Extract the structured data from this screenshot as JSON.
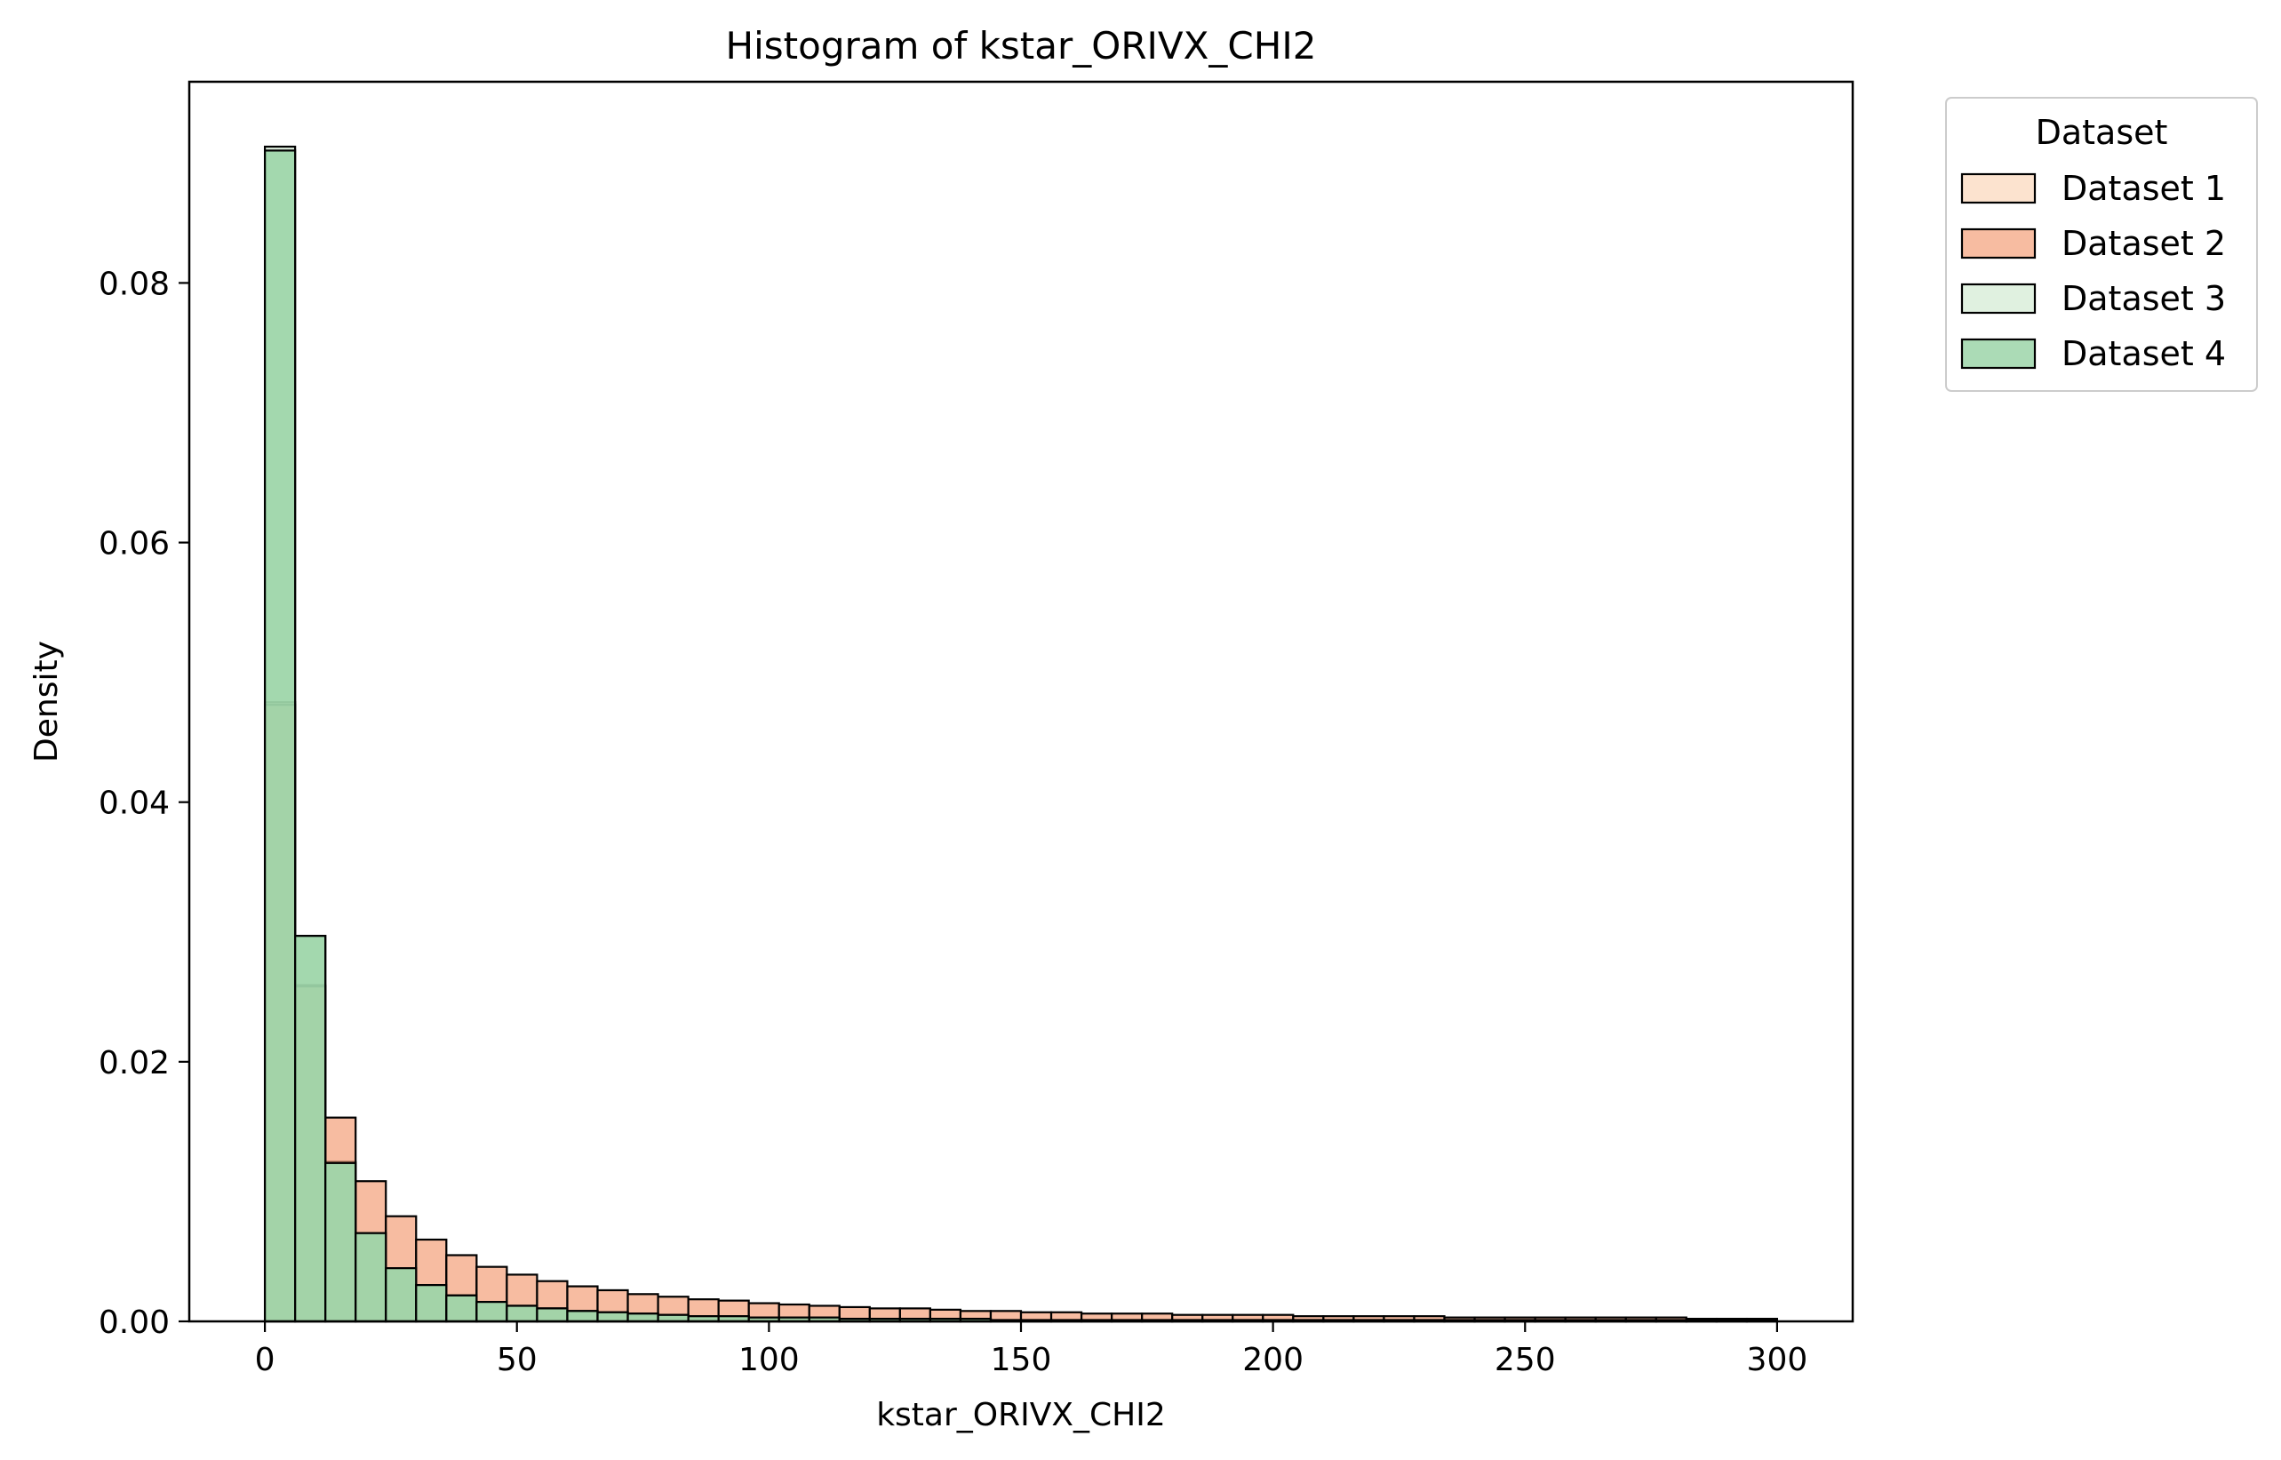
{
  "chart_data": {
    "type": "bar",
    "title": "Histogram of kstar_ORIVX_CHI2",
    "xlabel": "kstar_ORIVX_CHI2",
    "ylabel": "Density",
    "xlim": [
      -15,
      315
    ],
    "ylim": [
      0,
      0.0955
    ],
    "xticks": [
      0,
      50,
      100,
      150,
      200,
      250,
      300
    ],
    "xtick_labels": [
      "0",
      "50",
      "100",
      "150",
      "200",
      "250",
      "300"
    ],
    "yticks": [
      0,
      0.02,
      0.04,
      0.06,
      0.08
    ],
    "ytick_labels": [
      "0.00",
      "0.02",
      "0.04",
      "0.06",
      "0.08"
    ],
    "bin_width": 6,
    "bin_start": 0,
    "grid": false,
    "legend_title": "Dataset",
    "legend_position": "outside-top-right",
    "series": [
      {
        "name": "Dataset 1",
        "color": "#fbd9bf",
        "values": [
          0.0477,
          0.0259,
          0.0123,
          0.0068,
          0.0041,
          0.0028,
          0.002,
          0.0015,
          0.0012,
          0.001,
          0.0008,
          0.0007,
          0.0006,
          0.0005,
          0.0004,
          0.0004,
          0.0003,
          0.0003,
          0.0003,
          0.0002,
          0.0002,
          0.0002,
          0.0002,
          0.0002,
          0.0001,
          0.0001,
          0.0001,
          0.0001,
          0.0001,
          0.0001,
          0.0001,
          0.0001,
          0.0001,
          0.0001,
          0.0001,
          0.0001,
          0.0001,
          0.0001,
          0.0001,
          0.0001,
          0.0001,
          0.0001,
          0.0001,
          0.0001,
          0.0001,
          0.0001,
          0.0001,
          0.0001,
          0.0001,
          0.0001
        ]
      },
      {
        "name": "Dataset 2",
        "color": "#f4a582",
        "values": [
          0.0475,
          0.0258,
          0.0157,
          0.0108,
          0.0081,
          0.0063,
          0.0051,
          0.0042,
          0.0036,
          0.0031,
          0.0027,
          0.0024,
          0.0021,
          0.0019,
          0.0017,
          0.0016,
          0.0014,
          0.0013,
          0.0012,
          0.0011,
          0.001,
          0.001,
          0.0009,
          0.0008,
          0.0008,
          0.0007,
          0.0007,
          0.0006,
          0.0006,
          0.0006,
          0.0005,
          0.0005,
          0.0005,
          0.0005,
          0.0004,
          0.0004,
          0.0004,
          0.0004,
          0.0004,
          0.0003,
          0.0003,
          0.0003,
          0.0003,
          0.0003,
          0.0003,
          0.0003,
          0.0003,
          0.0002,
          0.0002,
          0.0002
        ]
      },
      {
        "name": "Dataset 3",
        "color": "#d6ecd5",
        "values": [
          0.0905,
          0.0297,
          0.0122,
          0.0068,
          0.0041,
          0.0028,
          0.002,
          0.0015,
          0.0012,
          0.001,
          0.0008,
          0.0007,
          0.0006,
          0.0005,
          0.0004,
          0.0004,
          0.0003,
          0.0003,
          0.0003,
          0.0002,
          0.0002,
          0.0002,
          0.0002,
          0.0002,
          0.0001,
          0.0001,
          0.0001,
          0.0001,
          0.0001,
          0.0001,
          0.0001,
          0.0001,
          0.0001,
          0.0001,
          0.0001,
          0.0001,
          0.0001,
          0.0001,
          0.0001,
          0.0001,
          0.0001,
          0.0001,
          0.0001,
          0.0001,
          0.0001,
          0.0001,
          0.0001,
          0.0001,
          0.0001,
          0.0001
        ]
      },
      {
        "name": "Dataset 4",
        "color": "#8fcf9e",
        "values": [
          0.0902,
          0.0297,
          0.0122,
          0.0068,
          0.0041,
          0.0028,
          0.002,
          0.0015,
          0.0012,
          0.001,
          0.0008,
          0.0007,
          0.0006,
          0.0005,
          0.0004,
          0.0004,
          0.0003,
          0.0003,
          0.0003,
          0.0002,
          0.0002,
          0.0002,
          0.0002,
          0.0002,
          0.0001,
          0.0001,
          0.0001,
          0.0001,
          0.0001,
          0.0001,
          0.0001,
          0.0001,
          0.0001,
          0.0001,
          0.0001,
          0.0001,
          0.0001,
          0.0001,
          0.0001,
          0.0001,
          0.0001,
          0.0001,
          0.0001,
          0.0001,
          0.0001,
          0.0001,
          0.0001,
          0.0001,
          0.0001,
          0.0001
        ]
      }
    ]
  }
}
